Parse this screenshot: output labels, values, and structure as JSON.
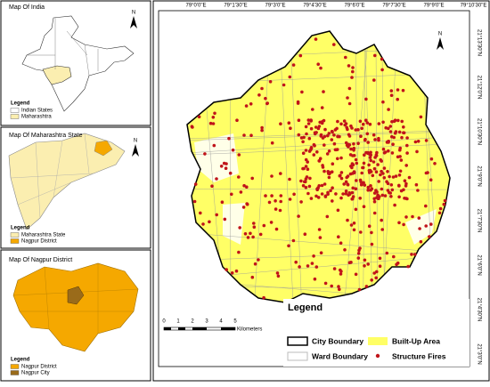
{
  "inset_maps": [
    {
      "title": "Map Of India",
      "north": "N",
      "legend_title": "Legend",
      "legend_items": [
        "Indian States",
        "Maharashtra"
      ]
    },
    {
      "title": "Map Of Maharashtra State",
      "north": "N",
      "legend_title": "Legend",
      "legend_items": [
        "Maharashtra State",
        "Nagpur District"
      ]
    },
    {
      "title": "Map Of Nagpur District",
      "legend_title": "Legend",
      "legend_items": [
        "Nagpur District",
        "Nagpur City"
      ]
    }
  ],
  "main_map": {
    "north": "N",
    "lon_labels": [
      "79°0'0\"E",
      "79°1'30\"E",
      "79°3'0\"E",
      "79°4'30\"E",
      "79°6'0\"E",
      "79°7'30\"E",
      "79°9'0\"E",
      "79°10'30\"E"
    ],
    "lat_labels": [
      "21°13'30\"N",
      "21°12'0\"N",
      "21°10'30\"N",
      "21°9'0\"N",
      "21°7'30\"N",
      "21°6'0\"N",
      "21°4'30\"N",
      "21°3'0\"N"
    ],
    "legend": {
      "title": "Legend",
      "items": [
        "City Boundary",
        "Built-Up Area",
        "Ward Boundary",
        "Structure Fires"
      ]
    },
    "scale": {
      "ticks": [
        "0",
        "1",
        "2",
        "3",
        "4",
        "5"
      ],
      "unit": "Kilometers"
    }
  }
}
